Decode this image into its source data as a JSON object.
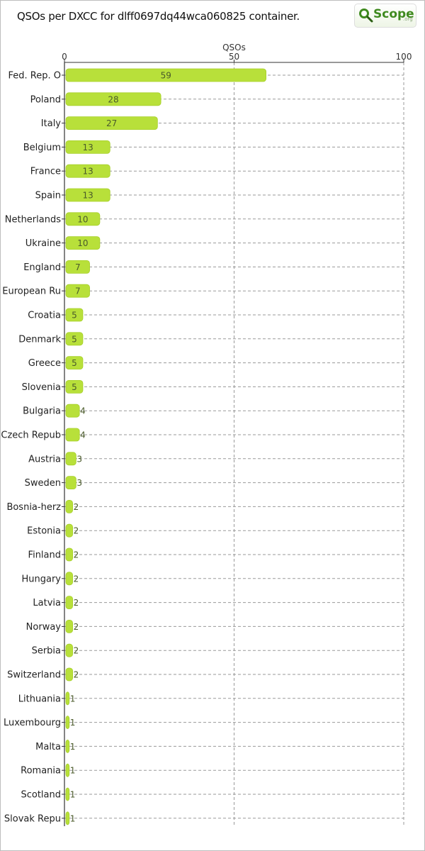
{
  "chart_data": {
    "type": "bar",
    "orientation": "horizontal",
    "title": "QSOs per DXCC for dlff0697dq44wca060825 container.",
    "xlabel": "QSOs",
    "ylabel": "",
    "xlim": [
      0,
      100
    ],
    "xticks": [
      0,
      50,
      100
    ],
    "grid": true,
    "bar_color": "#b8e03a",
    "categories": [
      "Fed. Rep. O",
      "Poland",
      "Italy",
      "Belgium",
      "France",
      "Spain",
      "Netherlands",
      "Ukraine",
      "England",
      "European Ru",
      "Croatia",
      "Denmark",
      "Greece",
      "Slovenia",
      "Bulgaria",
      "Czech Repub",
      "Austria",
      "Sweden",
      "Bosnia-herz",
      "Estonia",
      "Finland",
      "Hungary",
      "Latvia",
      "Norway",
      "Serbia",
      "Switzerland",
      "Lithuania",
      "Luxembourg",
      "Malta",
      "Romania",
      "Scotland",
      "Slovak Repu"
    ],
    "values": [
      59,
      28,
      27,
      13,
      13,
      13,
      10,
      10,
      7,
      7,
      5,
      5,
      5,
      5,
      4,
      4,
      3,
      3,
      2,
      2,
      2,
      2,
      2,
      2,
      2,
      2,
      1,
      1,
      1,
      1,
      1,
      1
    ]
  },
  "logo": {
    "text": "Scope",
    "suffix": ".org",
    "icon": "magnifier-q-icon"
  }
}
